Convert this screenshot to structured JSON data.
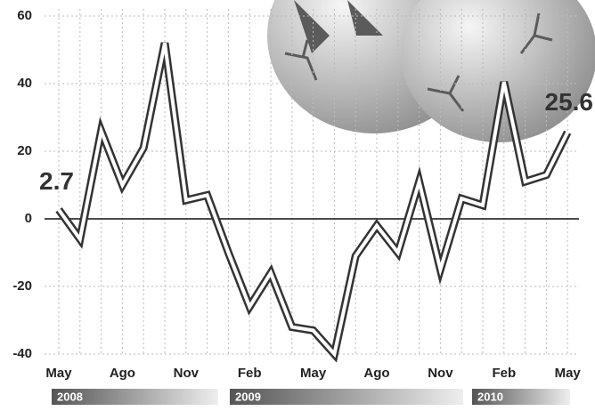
{
  "chart_data": {
    "type": "line",
    "categories": [
      "May",
      null,
      null,
      "Ago",
      null,
      null,
      "Nov",
      null,
      null,
      "Feb",
      null,
      null,
      "May",
      null,
      null,
      "Ago",
      null,
      null,
      "Nov",
      null,
      null,
      "Feb",
      null,
      null,
      "May"
    ],
    "series": [
      {
        "color": "#333333",
        "values": [
          2.7,
          -6,
          26,
          10,
          21,
          52,
          5.5,
          7,
          -10,
          -26,
          -16,
          -32,
          -33,
          -40,
          -11,
          -2,
          -10,
          11,
          -15,
          6,
          4,
          40.5,
          11,
          13,
          25.6
        ]
      }
    ],
    "ylim": [
      -40,
      60
    ],
    "yticks": [
      -40,
      -20,
      0,
      20,
      40,
      60
    ],
    "grid": true,
    "years": [
      "2008",
      "2009",
      "2010"
    ]
  }
}
